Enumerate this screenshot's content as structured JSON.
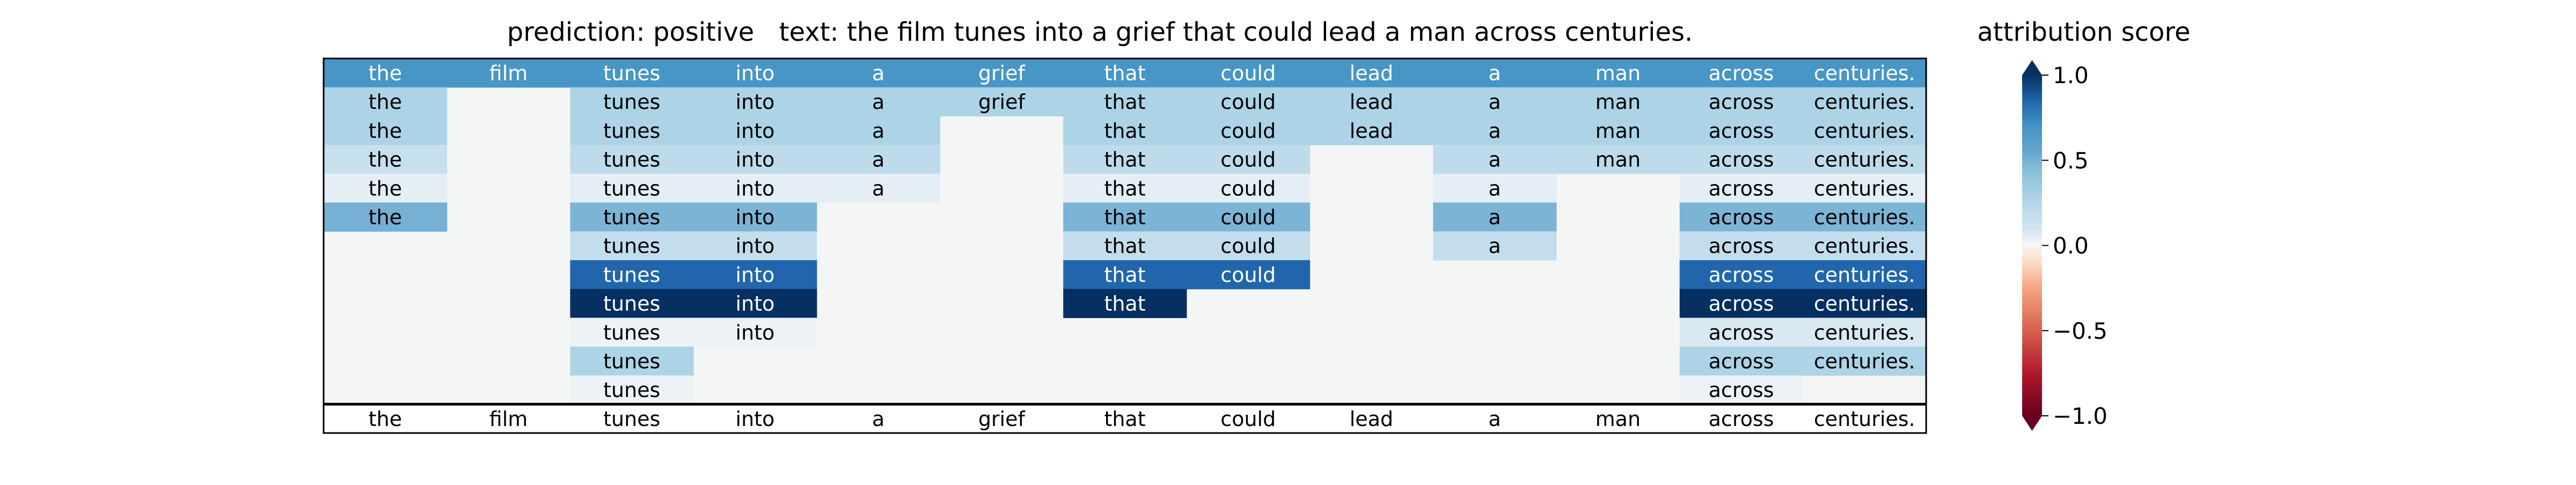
{
  "header": {
    "prediction": "prediction:  positive",
    "text": "text:  the film tunes into a grief that could lead a man across centuries."
  },
  "colorbar_label": "attribution score",
  "chart_data": {
    "type": "heatmap",
    "tokens": [
      "the",
      "film",
      "tunes",
      "into",
      "a",
      "grief",
      "that",
      "could",
      "lead",
      "a",
      "man",
      "across",
      "centuries."
    ],
    "colormap": "RdBu",
    "vmin": -1.0,
    "vmax": 1.0,
    "colorbar_ticks": [
      "1.0",
      "0.5",
      "0.0",
      "−0.5",
      "−1.0"
    ],
    "colorbar_tick_values": [
      1.0,
      0.5,
      0.0,
      -0.5,
      -1.0
    ],
    "background_color": "#f4f6f6",
    "rows": [
      [
        0.68,
        0.68,
        0.68,
        0.68,
        0.68,
        0.68,
        0.68,
        0.68,
        0.68,
        0.68,
        0.68,
        0.68,
        0.68
      ],
      [
        0.28,
        null,
        0.28,
        0.28,
        0.28,
        0.28,
        0.28,
        0.28,
        0.28,
        0.28,
        0.28,
        0.28,
        0.28
      ],
      [
        0.28,
        null,
        0.28,
        0.28,
        0.28,
        null,
        0.28,
        0.28,
        0.28,
        0.28,
        0.28,
        0.28,
        0.28
      ],
      [
        0.15,
        null,
        0.2,
        0.2,
        0.2,
        null,
        0.2,
        0.2,
        null,
        0.2,
        0.2,
        0.2,
        0.2
      ],
      [
        0.05,
        null,
        0.05,
        0.05,
        0.05,
        null,
        0.05,
        0.05,
        null,
        0.05,
        null,
        0.05,
        0.05
      ],
      [
        0.5,
        null,
        0.48,
        0.48,
        null,
        null,
        0.48,
        0.48,
        null,
        0.48,
        null,
        0.48,
        0.48
      ],
      [
        null,
        null,
        0.18,
        0.18,
        null,
        null,
        0.18,
        0.18,
        null,
        0.18,
        null,
        0.18,
        0.18
      ],
      [
        null,
        null,
        0.85,
        0.85,
        null,
        null,
        0.85,
        0.85,
        null,
        null,
        null,
        0.85,
        0.85
      ],
      [
        null,
        null,
        1.0,
        1.0,
        null,
        null,
        1.0,
        null,
        null,
        null,
        null,
        1.0,
        1.0
      ],
      [
        null,
        null,
        0.03,
        0.03,
        null,
        null,
        null,
        null,
        null,
        null,
        null,
        0.08,
        0.08
      ],
      [
        null,
        null,
        0.28,
        null,
        null,
        null,
        null,
        null,
        null,
        null,
        null,
        0.28,
        0.28
      ],
      [
        null,
        null,
        0.03,
        null,
        null,
        null,
        null,
        null,
        null,
        null,
        null,
        0.03,
        null
      ]
    ]
  }
}
